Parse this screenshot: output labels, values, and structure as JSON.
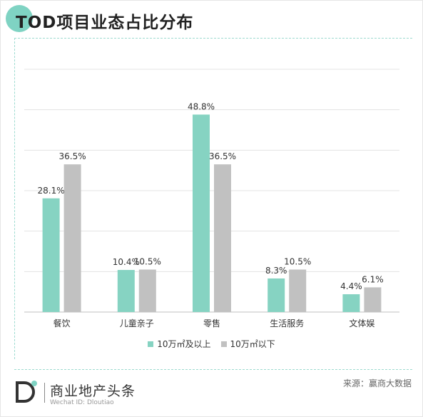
{
  "title": "TOD项目业态占比分布",
  "colors": {
    "teal": "#86d3c2",
    "gray": "#c1c1c1",
    "accent": "#7fd3c3"
  },
  "chart_data": {
    "type": "bar",
    "title": "TOD项目业态占比分布",
    "categories": [
      "餐饮",
      "儿童亲子",
      "零售",
      "生活服务",
      "文体娱"
    ],
    "series": [
      {
        "name": "10万㎡及以上",
        "values": [
          28.1,
          10.4,
          48.8,
          8.3,
          4.4
        ],
        "labels": [
          "28.1%",
          "10.4%",
          "48.8%",
          "8.3%",
          "4.4%"
        ]
      },
      {
        "name": "10万㎡以下",
        "values": [
          36.5,
          10.5,
          36.5,
          10.5,
          6.1
        ],
        "labels": [
          "36.5%",
          "10.5%",
          "36.5%",
          "10.5%",
          "6.1%"
        ]
      }
    ],
    "ylim": [
      0,
      60
    ],
    "grid": true,
    "legend": "bottom"
  },
  "footer": {
    "logo_letter": "D",
    "brand": "商业地产头条",
    "wechat": "Wechat ID: Dloutiao",
    "source": "来源：赢商大数据"
  }
}
